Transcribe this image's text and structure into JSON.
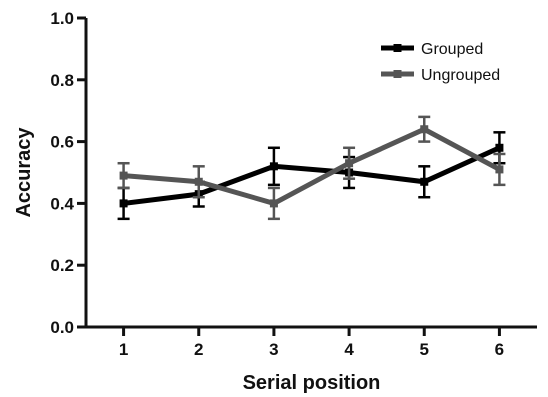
{
  "chart_data": {
    "type": "line",
    "xlabel": "Serial position",
    "ylabel": "Accuracy",
    "x": [
      1,
      2,
      3,
      4,
      5,
      6
    ],
    "xlim": [
      0.5,
      6.5
    ],
    "ylim": [
      0.0,
      1.0
    ],
    "yticks": [
      0.0,
      0.2,
      0.4,
      0.6,
      0.8,
      1.0
    ],
    "ytick_labels": [
      "0.0",
      "0.2",
      "0.4",
      "0.6",
      "0.8",
      "1.0"
    ],
    "xtick_labels": [
      "1",
      "2",
      "3",
      "4",
      "5",
      "6"
    ],
    "grid": false,
    "legend_position": "top-right",
    "series": [
      {
        "name": "Grouped",
        "color": "#000000",
        "values": [
          0.4,
          0.43,
          0.52,
          0.5,
          0.47,
          0.58
        ],
        "error": [
          0.05,
          0.04,
          0.06,
          0.05,
          0.05,
          0.05
        ]
      },
      {
        "name": "Ungrouped",
        "color": "#555555",
        "values": [
          0.49,
          0.47,
          0.4,
          0.53,
          0.64,
          0.51
        ],
        "error": [
          0.04,
          0.05,
          0.05,
          0.05,
          0.04,
          0.05
        ]
      }
    ]
  }
}
